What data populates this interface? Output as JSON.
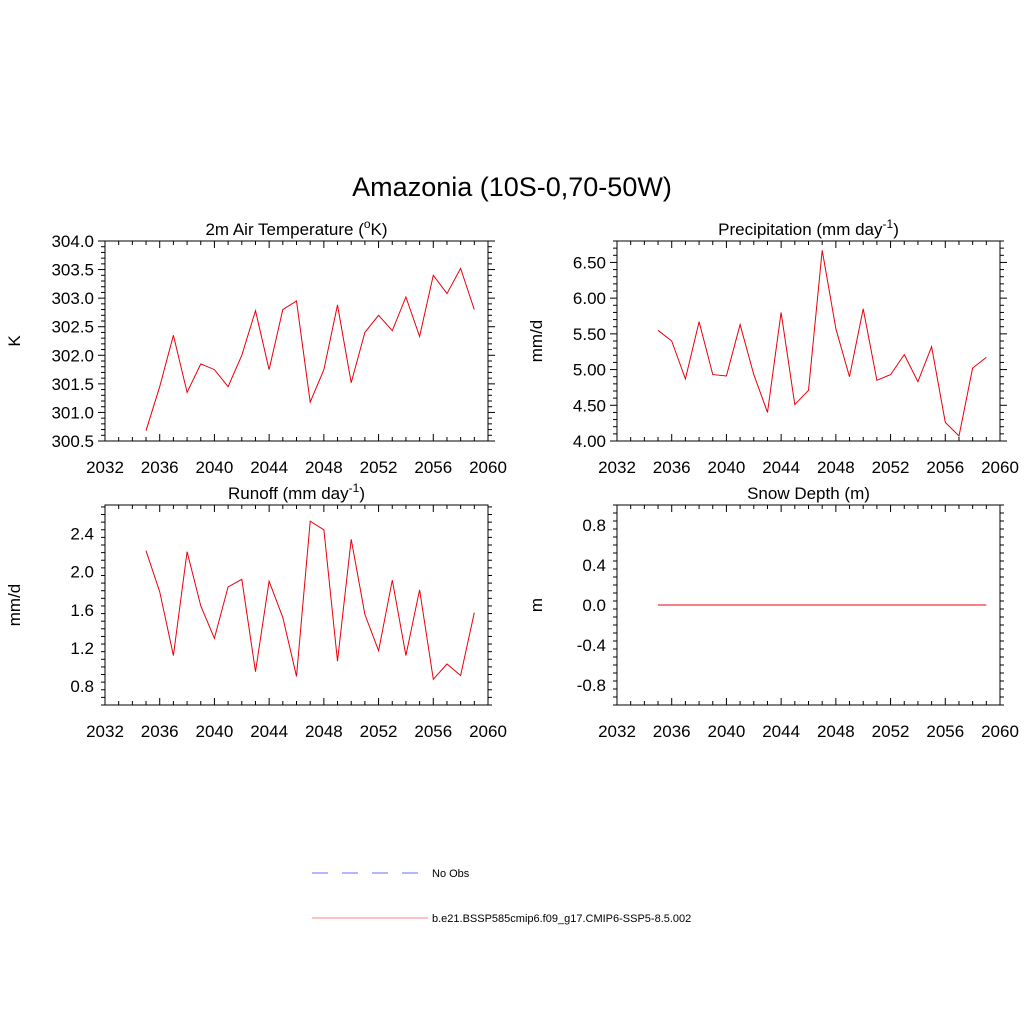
{
  "title": "Amazonia (10S-0,70-50W)",
  "colors": {
    "series": "#e8000b",
    "obs": "#8a8aff",
    "axis": "#000000"
  },
  "legend": [
    {
      "label": "No Obs",
      "style": "dashed",
      "color": "#8a8aff"
    },
    {
      "label": "b.e21.BSSP585cmip6.f09_g17.CMIP6-SSP5-8.5.002",
      "style": "solid",
      "color": "#ff9a9a"
    }
  ],
  "chart_data": [
    {
      "type": "line",
      "title": "2m Air Temperature (oK)",
      "ylabel": "K",
      "xlim": [
        2032,
        2060
      ],
      "ylim": [
        300.5,
        304.0
      ],
      "xticks": [
        "2032",
        "2036",
        "2040",
        "2044",
        "2048",
        "2052",
        "2056",
        "2060"
      ],
      "yticks": [
        "300.5",
        "301.0",
        "301.5",
        "302.0",
        "302.5",
        "303.0",
        "303.5",
        "304.0"
      ],
      "x": [
        2035,
        2036,
        2037,
        2038,
        2039,
        2040,
        2041,
        2042,
        2043,
        2044,
        2045,
        2046,
        2047,
        2048,
        2049,
        2050,
        2051,
        2052,
        2053,
        2054,
        2055,
        2056,
        2057,
        2058,
        2059
      ],
      "series": [
        {
          "values": [
            300.68,
            301.45,
            302.35,
            301.35,
            301.85,
            301.75,
            301.45,
            302.0,
            302.78,
            301.75,
            302.8,
            302.95,
            301.18,
            301.75,
            302.88,
            301.52,
            302.4,
            302.7,
            302.43,
            303.02,
            302.33,
            303.4,
            303.08,
            303.52,
            302.8
          ]
        }
      ]
    },
    {
      "type": "line",
      "title": "Precipitation (mm day-1)",
      "ylabel": "mm/d",
      "xlim": [
        2032,
        2060
      ],
      "ylim": [
        4.0,
        6.8
      ],
      "xticks": [
        "2032",
        "2036",
        "2040",
        "2044",
        "2048",
        "2052",
        "2056",
        "2060"
      ],
      "yticks": [
        "4.00",
        "4.50",
        "5.00",
        "5.50",
        "6.00",
        "6.50"
      ],
      "x": [
        2035,
        2036,
        2037,
        2038,
        2039,
        2040,
        2041,
        2042,
        2043,
        2044,
        2045,
        2046,
        2047,
        2048,
        2049,
        2050,
        2051,
        2052,
        2053,
        2054,
        2055,
        2056,
        2057,
        2058,
        2059
      ],
      "series": [
        {
          "values": [
            5.55,
            5.4,
            4.87,
            5.67,
            4.93,
            4.91,
            5.63,
            4.93,
            4.4,
            5.8,
            4.51,
            4.71,
            6.67,
            5.57,
            4.9,
            5.85,
            4.85,
            4.93,
            5.21,
            4.83,
            5.32,
            4.26,
            4.07,
            5.02,
            5.17
          ]
        }
      ]
    },
    {
      "type": "line",
      "title": "Runoff (mm day-1)",
      "ylabel": "mm/d",
      "xlim": [
        2032,
        2060
      ],
      "ylim": [
        0.6,
        2.7
      ],
      "xticks": [
        "2032",
        "2036",
        "2040",
        "2044",
        "2048",
        "2052",
        "2056",
        "2060"
      ],
      "yticks": [
        "0.8",
        "1.2",
        "1.6",
        "2.0",
        "2.4"
      ],
      "x": [
        2035,
        2036,
        2037,
        2038,
        2039,
        2040,
        2041,
        2042,
        2043,
        2044,
        2045,
        2046,
        2047,
        2048,
        2049,
        2050,
        2051,
        2052,
        2053,
        2054,
        2055,
        2056,
        2057,
        2058,
        2059
      ],
      "series": [
        {
          "values": [
            2.22,
            1.79,
            1.12,
            2.21,
            1.64,
            1.3,
            1.84,
            1.92,
            0.95,
            1.9,
            1.52,
            0.9,
            2.53,
            2.44,
            1.06,
            2.34,
            1.55,
            1.17,
            1.91,
            1.12,
            1.81,
            0.87,
            1.03,
            0.91,
            1.57
          ]
        }
      ]
    },
    {
      "type": "line",
      "title": "Snow Depth (m)",
      "ylabel": "m",
      "xlim": [
        2032,
        2060
      ],
      "ylim": [
        -1.0,
        1.0
      ],
      "xticks": [
        "2032",
        "2036",
        "2040",
        "2044",
        "2048",
        "2052",
        "2056",
        "2060"
      ],
      "yticks": [
        "-0.8",
        "-0.4",
        "0.0",
        "0.4",
        "0.8"
      ],
      "x": [
        2035,
        2036,
        2037,
        2038,
        2039,
        2040,
        2041,
        2042,
        2043,
        2044,
        2045,
        2046,
        2047,
        2048,
        2049,
        2050,
        2051,
        2052,
        2053,
        2054,
        2055,
        2056,
        2057,
        2058,
        2059
      ],
      "series": [
        {
          "values": [
            0,
            0,
            0,
            0,
            0,
            0,
            0,
            0,
            0,
            0,
            0,
            0,
            0,
            0,
            0,
            0,
            0,
            0,
            0,
            0,
            0,
            0,
            0,
            0,
            0
          ]
        }
      ]
    }
  ]
}
